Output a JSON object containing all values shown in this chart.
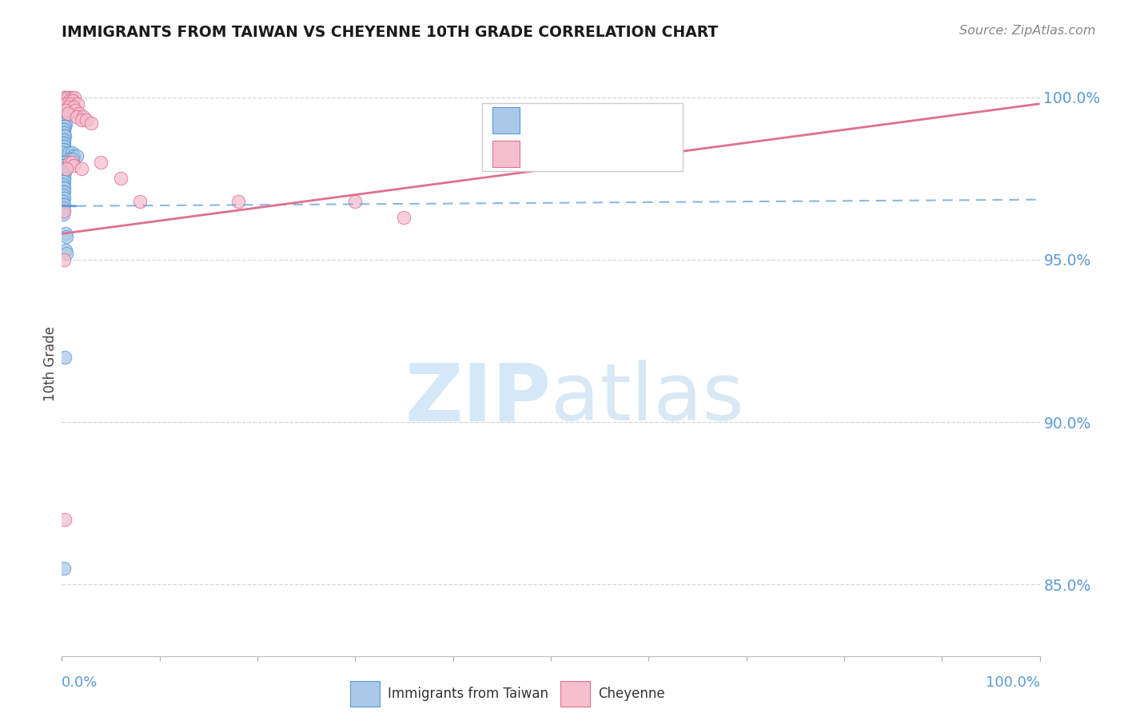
{
  "title": "IMMIGRANTS FROM TAIWAN VS CHEYENNE 10TH GRADE CORRELATION CHART",
  "source_text": "Source: ZipAtlas.com",
  "ylabel": "10th Grade",
  "ylabel_right_ticks": [
    "85.0%",
    "90.0%",
    "95.0%",
    "100.0%"
  ],
  "ylabel_right_vals": [
    0.85,
    0.9,
    0.95,
    1.0
  ],
  "blue_fill": "#aac9e8",
  "blue_edge": "#5b9bd5",
  "pink_fill": "#f5bfce",
  "pink_edge": "#e07090",
  "trendline_blue": "#5b9bd5",
  "trendline_pink": "#e07090",
  "grid_color": "#cccccc",
  "watermark_color": "#d4e8f8",
  "xlim": [
    0.0,
    1.0
  ],
  "ylim": [
    0.828,
    1.008
  ],
  "grid_hlines": [
    0.85,
    0.9,
    0.95,
    1.0
  ],
  "blue_scatter": [
    [
      0.002,
      1.0
    ],
    [
      0.004,
      1.0
    ],
    [
      0.007,
      1.0
    ],
    [
      0.009,
      1.0
    ],
    [
      0.003,
      0.999
    ],
    [
      0.005,
      0.999
    ],
    [
      0.006,
      0.999
    ],
    [
      0.008,
      0.999
    ],
    [
      0.001,
      0.998
    ],
    [
      0.002,
      0.998
    ],
    [
      0.003,
      0.998
    ],
    [
      0.004,
      0.998
    ],
    [
      0.002,
      0.997
    ],
    [
      0.003,
      0.997
    ],
    [
      0.005,
      0.997
    ],
    [
      0.007,
      0.997
    ],
    [
      0.001,
      0.996
    ],
    [
      0.002,
      0.996
    ],
    [
      0.004,
      0.996
    ],
    [
      0.006,
      0.996
    ],
    [
      0.001,
      0.995
    ],
    [
      0.002,
      0.995
    ],
    [
      0.003,
      0.995
    ],
    [
      0.005,
      0.995
    ],
    [
      0.001,
      0.994
    ],
    [
      0.002,
      0.994
    ],
    [
      0.003,
      0.994
    ],
    [
      0.004,
      0.994
    ],
    [
      0.001,
      0.993
    ],
    [
      0.002,
      0.993
    ],
    [
      0.003,
      0.993
    ],
    [
      0.001,
      0.992
    ],
    [
      0.002,
      0.992
    ],
    [
      0.004,
      0.992
    ],
    [
      0.001,
      0.991
    ],
    [
      0.002,
      0.991
    ],
    [
      0.003,
      0.991
    ],
    [
      0.001,
      0.99
    ],
    [
      0.002,
      0.99
    ],
    [
      0.001,
      0.989
    ],
    [
      0.002,
      0.989
    ],
    [
      0.001,
      0.988
    ],
    [
      0.002,
      0.988
    ],
    [
      0.003,
      0.988
    ],
    [
      0.001,
      0.987
    ],
    [
      0.002,
      0.987
    ],
    [
      0.001,
      0.986
    ],
    [
      0.002,
      0.986
    ],
    [
      0.001,
      0.985
    ],
    [
      0.002,
      0.985
    ],
    [
      0.001,
      0.984
    ],
    [
      0.002,
      0.984
    ],
    [
      0.001,
      0.983
    ],
    [
      0.007,
      0.983
    ],
    [
      0.01,
      0.983
    ],
    [
      0.012,
      0.982
    ],
    [
      0.015,
      0.982
    ],
    [
      0.008,
      0.981
    ],
    [
      0.011,
      0.981
    ],
    [
      0.002,
      0.98
    ],
    [
      0.003,
      0.98
    ],
    [
      0.001,
      0.979
    ],
    [
      0.002,
      0.979
    ],
    [
      0.001,
      0.978
    ],
    [
      0.002,
      0.978
    ],
    [
      0.002,
      0.977
    ],
    [
      0.003,
      0.977
    ],
    [
      0.001,
      0.976
    ],
    [
      0.002,
      0.976
    ],
    [
      0.001,
      0.975
    ],
    [
      0.002,
      0.975
    ],
    [
      0.001,
      0.974
    ],
    [
      0.002,
      0.974
    ],
    [
      0.001,
      0.973
    ],
    [
      0.001,
      0.972
    ],
    [
      0.002,
      0.972
    ],
    [
      0.001,
      0.971
    ],
    [
      0.002,
      0.971
    ],
    [
      0.001,
      0.97
    ],
    [
      0.002,
      0.969
    ],
    [
      0.001,
      0.968
    ],
    [
      0.001,
      0.967
    ],
    [
      0.002,
      0.967
    ],
    [
      0.001,
      0.966
    ],
    [
      0.001,
      0.965
    ],
    [
      0.001,
      0.964
    ],
    [
      0.004,
      0.958
    ],
    [
      0.005,
      0.957
    ],
    [
      0.004,
      0.953
    ],
    [
      0.005,
      0.952
    ],
    [
      0.003,
      0.92
    ],
    [
      0.002,
      0.855
    ]
  ],
  "pink_scatter": [
    [
      0.003,
      1.0
    ],
    [
      0.006,
      1.0
    ],
    [
      0.01,
      1.0
    ],
    [
      0.013,
      1.0
    ],
    [
      0.008,
      0.999
    ],
    [
      0.011,
      0.999
    ],
    [
      0.005,
      0.998
    ],
    [
      0.009,
      0.998
    ],
    [
      0.016,
      0.998
    ],
    [
      0.007,
      0.997
    ],
    [
      0.012,
      0.997
    ],
    [
      0.004,
      0.996
    ],
    [
      0.014,
      0.996
    ],
    [
      0.006,
      0.995
    ],
    [
      0.018,
      0.995
    ],
    [
      0.015,
      0.994
    ],
    [
      0.022,
      0.994
    ],
    [
      0.02,
      0.993
    ],
    [
      0.025,
      0.993
    ],
    [
      0.03,
      0.992
    ],
    [
      0.008,
      0.98
    ],
    [
      0.01,
      0.98
    ],
    [
      0.012,
      0.979
    ],
    [
      0.005,
      0.978
    ],
    [
      0.02,
      0.978
    ],
    [
      0.04,
      0.98
    ],
    [
      0.06,
      0.975
    ],
    [
      0.08,
      0.968
    ],
    [
      0.002,
      0.965
    ],
    [
      0.18,
      0.968
    ],
    [
      0.3,
      0.968
    ],
    [
      0.35,
      0.963
    ],
    [
      0.002,
      0.95
    ],
    [
      0.003,
      0.87
    ]
  ],
  "blue_trendline_slope": 0.002,
  "blue_trendline_intercept": 0.9665,
  "pink_trendline_slope": 0.04,
  "pink_trendline_intercept": 0.958
}
